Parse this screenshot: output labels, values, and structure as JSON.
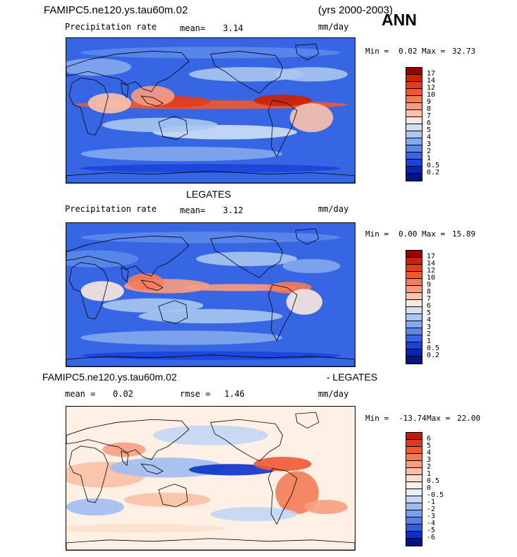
{
  "header": {
    "case_name": "FAMIPC5.ne120.ys.tau60m.02",
    "years": "(yrs 2000-2003)",
    "season": "ANN"
  },
  "panels": [
    {
      "title": "",
      "field": "Precipitation rate",
      "stat_label": "mean=",
      "stat_value": "3.14",
      "units": "mm/day",
      "min_label": "Min =",
      "min_value": "0.02",
      "max_label": "Max =",
      "max_value": "32.73"
    },
    {
      "title": "LEGATES",
      "field": "Precipitation rate",
      "stat_label": "mean=",
      "stat_value": "3.12",
      "units": "mm/day",
      "min_label": "Min =",
      "min_value": "0.00",
      "max_label": "Max =",
      "max_value": "15.89"
    },
    {
      "title_left": "FAMIPC5.ne120.ys.tau60m.02",
      "title_right": "- LEGATES",
      "mean_label": "mean =",
      "mean_value": "0.02",
      "rmse_label": "rmse =",
      "rmse_value": "1.46",
      "units": "mm/day",
      "min_label": "Min =",
      "min_value": "-13.74",
      "max_label": "Max =",
      "max_value": "22.00"
    }
  ],
  "chart_data": [
    {
      "type": "heatmap",
      "title": "FAMIPC5.ne120.ys.tau60m.02",
      "subtitle": "Precipitation rate",
      "units": "mm/day",
      "mean": 3.14,
      "min": 0.02,
      "max": 32.73,
      "colorbar_levels": [
        "17",
        "14",
        "12",
        "10",
        "9",
        "8",
        "7",
        "6",
        "5",
        "4",
        "3",
        "2",
        "1",
        "0.5",
        "0.2"
      ],
      "colorbar_colors": [
        "#990000",
        "#cc2200",
        "#e33b1b",
        "#f0582e",
        "#f57b55",
        "#f99c7e",
        "#fcc2aa",
        "#fbe8dc",
        "#cfe0f5",
        "#a9c6f0",
        "#84a9ee",
        "#5c88ea",
        "#3766e5",
        "#1a44d8",
        "#0a24b5",
        "#001680"
      ],
      "legend_position": "right"
    },
    {
      "type": "heatmap",
      "title": "LEGATES",
      "subtitle": "Precipitation rate",
      "units": "mm/day",
      "mean": 3.12,
      "min": 0.0,
      "max": 15.89,
      "colorbar_levels": [
        "17",
        "14",
        "12",
        "10",
        "9",
        "8",
        "7",
        "6",
        "5",
        "4",
        "3",
        "2",
        "1",
        "0.5",
        "0.2"
      ],
      "colorbar_colors": [
        "#990000",
        "#cc2200",
        "#e33b1b",
        "#f0582e",
        "#f57b55",
        "#f99c7e",
        "#fcc2aa",
        "#fbe8dc",
        "#cfe0f5",
        "#a9c6f0",
        "#84a9ee",
        "#5c88ea",
        "#3766e5",
        "#1a44d8",
        "#0a24b5",
        "#001680"
      ],
      "legend_position": "right"
    },
    {
      "type": "heatmap",
      "title": "FAMIPC5.ne120.ys.tau60m.02 - LEGATES",
      "units": "mm/day",
      "mean": 0.02,
      "rmse": 1.46,
      "min": -13.74,
      "max": 22.0,
      "colorbar_levels": [
        "6",
        "5",
        "4",
        "3",
        "2",
        "1",
        "0.5",
        "0",
        "-0.5",
        "-1",
        "-2",
        "-3",
        "-4",
        "-5",
        "-6"
      ],
      "colorbar_colors": [
        "#c01c0a",
        "#df3a1a",
        "#ee5a32",
        "#f47c55",
        "#f89e7e",
        "#fbc0a4",
        "#fde0cc",
        "#fff0e6",
        "#e6eefb",
        "#c4d6f4",
        "#a0bcef",
        "#7c9fec",
        "#5680e7",
        "#2f5ee0",
        "#0a32c8",
        "#00128a"
      ],
      "legend_position": "right"
    }
  ]
}
